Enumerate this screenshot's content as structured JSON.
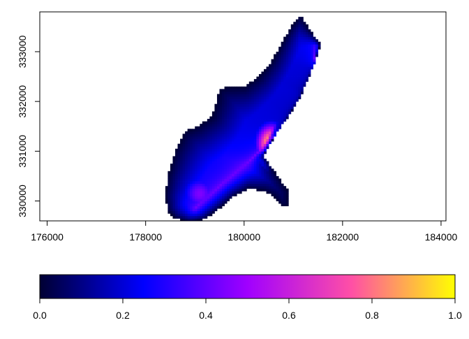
{
  "chart_data": {
    "type": "heatmap",
    "title": "",
    "xlabel": "",
    "ylabel": "",
    "x_ticks": [
      176000,
      178000,
      180000,
      182000,
      184000
    ],
    "y_ticks": [
      330000,
      331000,
      332000,
      333000
    ],
    "x_tick_labels": [
      "176000",
      "178000",
      "180000",
      "182000",
      "184000"
    ],
    "y_tick_labels": [
      "330000",
      "331000",
      "332000",
      "333000"
    ],
    "xlim": [
      175850,
      184100
    ],
    "ylim": [
      329600,
      333800
    ],
    "cell_size": 50,
    "colorscale": [
      "#000033",
      "#0000ff",
      "#a000ff",
      "#ff4fa6",
      "#ffff00"
    ],
    "colorbar": {
      "range": [
        0,
        1
      ],
      "ticks": [
        0.0,
        0.2,
        0.4,
        0.6,
        0.8,
        1.0
      ],
      "tick_labels": [
        "0.0",
        "0.2",
        "0.4",
        "0.6",
        "0.8",
        "1.0"
      ]
    },
    "field": {
      "outline": [
        [
          178450,
          329800
        ],
        [
          178600,
          329650
        ],
        [
          178900,
          329570
        ],
        [
          179200,
          329630
        ],
        [
          179500,
          329850
        ],
        [
          179800,
          330100
        ],
        [
          180100,
          330250
        ],
        [
          180400,
          330200
        ],
        [
          180600,
          330100
        ],
        [
          180750,
          329900
        ],
        [
          180900,
          329900
        ],
        [
          180900,
          330200
        ],
        [
          180400,
          330900
        ],
        [
          180650,
          331350
        ],
        [
          180900,
          331700
        ],
        [
          181150,
          332100
        ],
        [
          181300,
          332450
        ],
        [
          181450,
          332800
        ],
        [
          181550,
          333150
        ],
        [
          181300,
          333500
        ],
        [
          181150,
          333750
        ],
        [
          180950,
          333500
        ],
        [
          180750,
          333150
        ],
        [
          180550,
          332800
        ],
        [
          180300,
          332500
        ],
        [
          180000,
          332300
        ],
        [
          179700,
          332300
        ],
        [
          179500,
          332250
        ],
        [
          179450,
          332000
        ],
        [
          179350,
          331700
        ],
        [
          179050,
          331500
        ],
        [
          178800,
          331400
        ],
        [
          178600,
          331000
        ],
        [
          178450,
          330500
        ],
        [
          178400,
          330100
        ]
      ],
      "core": [
        [
          179000,
          329850
        ],
        [
          179500,
          330300
        ],
        [
          180100,
          330800
        ],
        [
          180550,
          331250
        ],
        [
          180950,
          331700
        ],
        [
          181250,
          332200
        ],
        [
          181400,
          332650
        ],
        [
          181450,
          333100
        ]
      ],
      "hotspot": {
        "center": [
          180550,
          331150
        ],
        "radius_x": 300,
        "radius_y": 400,
        "peak": 1.0
      },
      "secondary_peak": {
        "center": [
          179100,
          330150
        ],
        "value": 0.45
      },
      "edge_value": 0.0
    }
  }
}
